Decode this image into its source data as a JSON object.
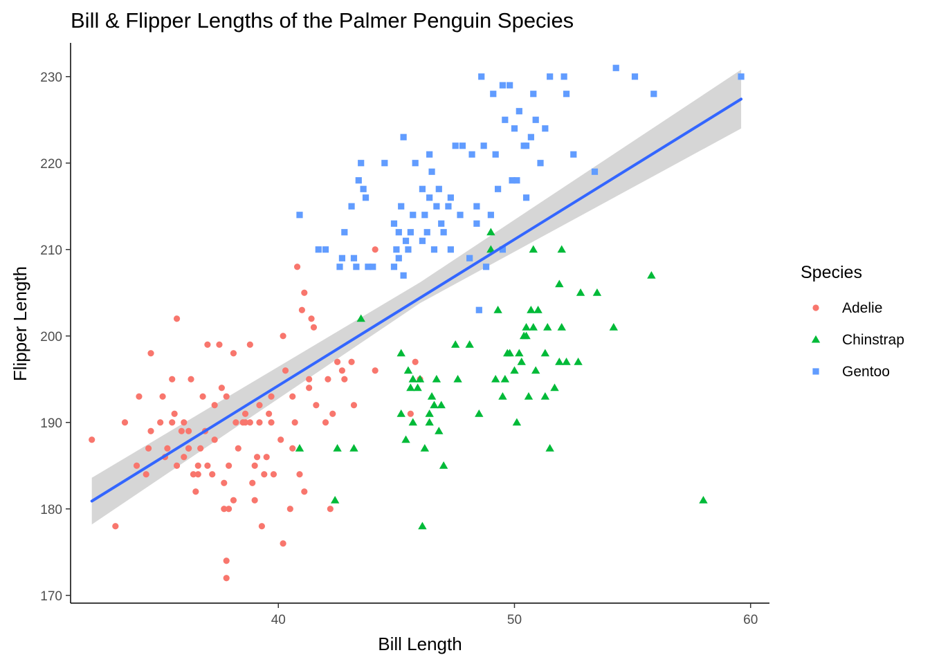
{
  "chart_data": {
    "type": "scatter",
    "title": "Bill & Flipper Lengths of the Palmer Penguin Species",
    "xlabel": "Bill Length",
    "ylabel": "Flipper Length",
    "xlim": [
      31.2,
      60.8
    ],
    "ylim": [
      169.1,
      233.9
    ],
    "x_ticks": [
      40,
      50,
      60
    ],
    "y_ticks": [
      170,
      180,
      190,
      200,
      210,
      220,
      230
    ],
    "grid": false,
    "legend": {
      "title": "Species",
      "position": "right"
    },
    "series": [
      {
        "name": "Adelie",
        "color": "#F8766D",
        "marker": "circle",
        "points": [
          [
            32.1,
            188
          ],
          [
            33.1,
            178
          ],
          [
            33.5,
            190
          ],
          [
            34.0,
            185
          ],
          [
            34.1,
            193
          ],
          [
            34.4,
            184
          ],
          [
            34.5,
            187
          ],
          [
            34.6,
            189
          ],
          [
            34.6,
            198
          ],
          [
            35.0,
            190
          ],
          [
            35.1,
            193
          ],
          [
            35.2,
            186
          ],
          [
            35.3,
            187
          ],
          [
            35.5,
            195
          ],
          [
            35.5,
            190
          ],
          [
            35.6,
            191
          ],
          [
            35.7,
            185
          ],
          [
            35.7,
            202
          ],
          [
            35.9,
            189
          ],
          [
            36.0,
            190
          ],
          [
            36.0,
            186
          ],
          [
            36.2,
            187
          ],
          [
            36.2,
            189
          ],
          [
            36.3,
            195
          ],
          [
            36.4,
            184
          ],
          [
            36.5,
            182
          ],
          [
            36.6,
            185
          ],
          [
            36.7,
            187
          ],
          [
            36.8,
            193
          ],
          [
            36.9,
            189
          ],
          [
            37.0,
            185
          ],
          [
            37.2,
            184
          ],
          [
            37.3,
            192
          ],
          [
            37.3,
            188
          ],
          [
            37.5,
            199
          ],
          [
            37.6,
            194
          ],
          [
            37.7,
            180
          ],
          [
            37.7,
            183
          ],
          [
            37.8,
            174
          ],
          [
            37.8,
            172
          ],
          [
            37.8,
            193
          ],
          [
            37.9,
            185
          ],
          [
            38.1,
            181
          ],
          [
            38.1,
            198
          ],
          [
            38.2,
            190
          ],
          [
            38.3,
            187
          ],
          [
            38.5,
            190
          ],
          [
            38.6,
            191
          ],
          [
            38.8,
            190
          ],
          [
            38.8,
            199
          ],
          [
            39.0,
            181
          ],
          [
            39.0,
            185
          ],
          [
            39.1,
            186
          ],
          [
            39.2,
            190
          ],
          [
            39.3,
            178
          ],
          [
            39.4,
            184
          ],
          [
            39.5,
            186
          ],
          [
            39.6,
            191
          ],
          [
            39.7,
            190
          ],
          [
            39.8,
            184
          ],
          [
            40.1,
            188
          ],
          [
            40.2,
            200
          ],
          [
            40.2,
            176
          ],
          [
            40.3,
            196
          ],
          [
            40.5,
            180
          ],
          [
            40.6,
            187
          ],
          [
            40.7,
            190
          ],
          [
            40.8,
            208
          ],
          [
            40.9,
            184
          ],
          [
            41.0,
            203
          ],
          [
            41.1,
            205
          ],
          [
            41.1,
            182
          ],
          [
            41.3,
            195
          ],
          [
            41.4,
            202
          ],
          [
            41.5,
            201
          ],
          [
            41.6,
            192
          ],
          [
            42.0,
            190
          ],
          [
            42.1,
            195
          ],
          [
            42.2,
            180
          ],
          [
            42.3,
            191
          ],
          [
            42.5,
            197
          ],
          [
            42.7,
            196
          ],
          [
            42.8,
            195
          ],
          [
            43.1,
            197
          ],
          [
            43.2,
            192
          ],
          [
            44.1,
            210
          ],
          [
            44.1,
            196
          ],
          [
            45.6,
            191
          ],
          [
            45.8,
            197
          ],
          [
            46.0,
            195
          ],
          [
            41.3,
            194
          ],
          [
            40.6,
            193
          ],
          [
            36.6,
            184
          ],
          [
            37.0,
            199
          ],
          [
            39.2,
            192
          ],
          [
            38.9,
            183
          ],
          [
            37.9,
            180
          ],
          [
            36.2,
            187
          ],
          [
            39.7,
            193
          ],
          [
            38.6,
            190
          ]
        ]
      },
      {
        "name": "Chinstrap",
        "color": "#00BA38",
        "marker": "triangle",
        "points": [
          [
            40.9,
            187
          ],
          [
            42.4,
            181
          ],
          [
            42.5,
            187
          ],
          [
            43.2,
            187
          ],
          [
            43.5,
            202
          ],
          [
            45.2,
            198
          ],
          [
            45.2,
            191
          ],
          [
            45.4,
            188
          ],
          [
            45.5,
            196
          ],
          [
            45.6,
            194
          ],
          [
            45.7,
            195
          ],
          [
            45.7,
            190
          ],
          [
            45.9,
            194
          ],
          [
            46.0,
            195
          ],
          [
            46.1,
            178
          ],
          [
            46.2,
            187
          ],
          [
            46.4,
            191
          ],
          [
            46.5,
            193
          ],
          [
            46.6,
            192
          ],
          [
            46.7,
            195
          ],
          [
            46.8,
            189
          ],
          [
            46.9,
            192
          ],
          [
            47.0,
            185
          ],
          [
            47.5,
            199
          ],
          [
            47.6,
            195
          ],
          [
            48.1,
            199
          ],
          [
            48.5,
            191
          ],
          [
            49.0,
            212
          ],
          [
            49.0,
            210
          ],
          [
            49.2,
            195
          ],
          [
            49.3,
            203
          ],
          [
            49.5,
            193
          ],
          [
            49.6,
            195
          ],
          [
            49.7,
            198
          ],
          [
            50.0,
            196
          ],
          [
            50.1,
            190
          ],
          [
            50.2,
            198
          ],
          [
            50.3,
            197
          ],
          [
            50.4,
            200
          ],
          [
            50.5,
            201
          ],
          [
            50.6,
            193
          ],
          [
            50.7,
            203
          ],
          [
            50.8,
            201
          ],
          [
            50.8,
            210
          ],
          [
            50.9,
            196
          ],
          [
            51.0,
            203
          ],
          [
            51.3,
            198
          ],
          [
            51.3,
            193
          ],
          [
            51.4,
            201
          ],
          [
            51.5,
            187
          ],
          [
            51.7,
            194
          ],
          [
            51.9,
            206
          ],
          [
            52.0,
            201
          ],
          [
            52.0,
            210
          ],
          [
            52.2,
            197
          ],
          [
            52.7,
            197
          ],
          [
            52.8,
            205
          ],
          [
            53.5,
            205
          ],
          [
            54.2,
            201
          ],
          [
            55.8,
            207
          ],
          [
            58.0,
            181
          ],
          [
            49.8,
            198
          ],
          [
            50.5,
            200
          ],
          [
            51.9,
            197
          ],
          [
            46.4,
            190
          ]
        ]
      },
      {
        "name": "Gentoo",
        "color": "#619CFF",
        "marker": "square",
        "points": [
          [
            40.9,
            214
          ],
          [
            41.7,
            210
          ],
          [
            42.0,
            210
          ],
          [
            42.6,
            208
          ],
          [
            42.7,
            209
          ],
          [
            42.8,
            212
          ],
          [
            43.1,
            215
          ],
          [
            43.2,
            209
          ],
          [
            43.3,
            208
          ],
          [
            43.4,
            218
          ],
          [
            43.5,
            220
          ],
          [
            43.6,
            217
          ],
          [
            43.8,
            208
          ],
          [
            44.0,
            208
          ],
          [
            44.5,
            220
          ],
          [
            44.9,
            213
          ],
          [
            45.0,
            210
          ],
          [
            45.1,
            212
          ],
          [
            45.2,
            215
          ],
          [
            45.3,
            207
          ],
          [
            45.3,
            223
          ],
          [
            45.4,
            211
          ],
          [
            45.5,
            210
          ],
          [
            45.6,
            212
          ],
          [
            45.7,
            214
          ],
          [
            45.8,
            220
          ],
          [
            46.1,
            211
          ],
          [
            46.2,
            214
          ],
          [
            46.3,
            212
          ],
          [
            46.4,
            216
          ],
          [
            46.5,
            219
          ],
          [
            46.6,
            210
          ],
          [
            46.7,
            215
          ],
          [
            46.8,
            217
          ],
          [
            46.9,
            213
          ],
          [
            47.0,
            212
          ],
          [
            47.2,
            215
          ],
          [
            47.3,
            216
          ],
          [
            47.5,
            222
          ],
          [
            47.7,
            214
          ],
          [
            47.8,
            222
          ],
          [
            48.1,
            209
          ],
          [
            48.2,
            221
          ],
          [
            48.4,
            213
          ],
          [
            48.5,
            203
          ],
          [
            48.7,
            222
          ],
          [
            48.8,
            208
          ],
          [
            49.0,
            214
          ],
          [
            49.1,
            228
          ],
          [
            49.3,
            217
          ],
          [
            49.5,
            229
          ],
          [
            49.6,
            225
          ],
          [
            49.8,
            229
          ],
          [
            50.0,
            224
          ],
          [
            50.1,
            218
          ],
          [
            50.2,
            226
          ],
          [
            50.4,
            222
          ],
          [
            50.5,
            216
          ],
          [
            50.7,
            223
          ],
          [
            50.8,
            228
          ],
          [
            51.1,
            220
          ],
          [
            51.3,
            224
          ],
          [
            51.5,
            230
          ],
          [
            52.1,
            230
          ],
          [
            52.2,
            228
          ],
          [
            52.5,
            221
          ],
          [
            53.4,
            219
          ],
          [
            54.3,
            231
          ],
          [
            55.1,
            230
          ],
          [
            55.9,
            228
          ],
          [
            59.6,
            230
          ],
          [
            46.4,
            221
          ],
          [
            47.3,
            210
          ],
          [
            45.1,
            209
          ],
          [
            49.9,
            218
          ],
          [
            48.4,
            215
          ],
          [
            50.5,
            222
          ],
          [
            46.1,
            217
          ],
          [
            44.9,
            208
          ],
          [
            49.2,
            221
          ],
          [
            50.9,
            225
          ],
          [
            48.6,
            230
          ],
          [
            49.5,
            210
          ],
          [
            43.7,
            216
          ]
        ]
      }
    ],
    "fit": {
      "label": "",
      "color": "#3366FF",
      "x": [
        32.1,
        59.6
      ],
      "y": [
        180.9,
        227.4
      ],
      "band_lower": [
        [
          32.1,
          178.2
        ],
        [
          46.0,
          203.8
        ],
        [
          59.6,
          224.0
        ]
      ],
      "band_upper": [
        [
          32.1,
          183.6
        ],
        [
          46.0,
          206.2
        ],
        [
          59.6,
          230.8
        ]
      ]
    }
  }
}
